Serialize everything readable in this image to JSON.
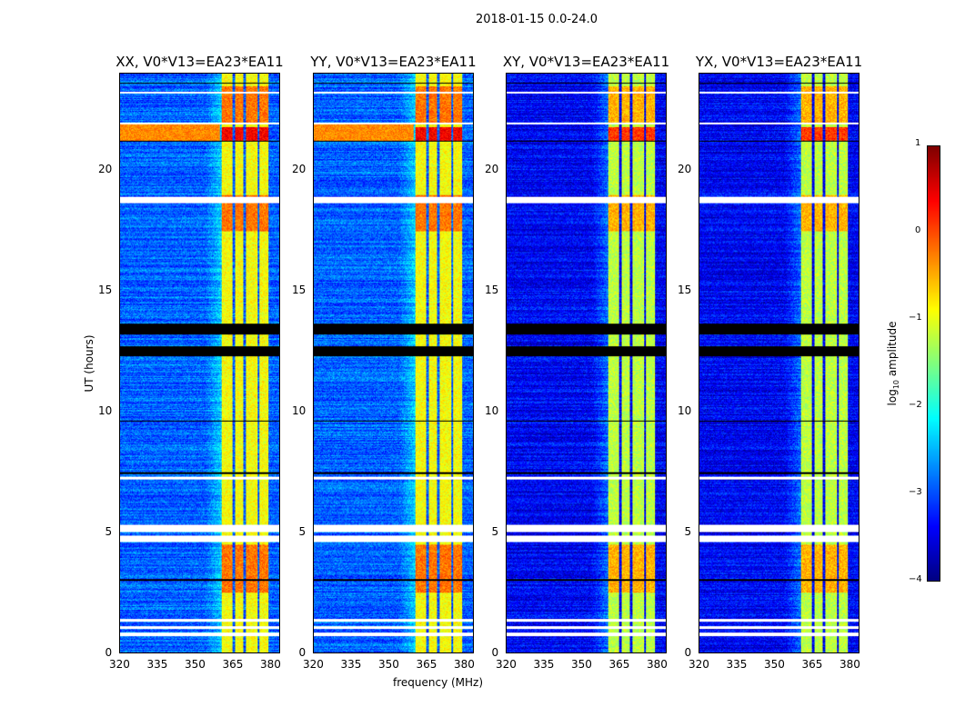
{
  "chart_data": {
    "type": "heatmap",
    "title": "2018-01-15 0.0-24.0",
    "xlabel": "frequency (MHz)",
    "ylabel": "UT (hours)",
    "xlim": [
      320,
      384
    ],
    "ylim": [
      0,
      24
    ],
    "xticks": [
      320,
      335,
      350,
      365,
      380
    ],
    "yticks": [
      0,
      5,
      10,
      15,
      20
    ],
    "panels": [
      {
        "title": "XX, V0*V13=EA23*EA11",
        "seed": 1,
        "bg": -2.9
      },
      {
        "title": "YY, V0*V13=EA23*EA11",
        "seed": 2,
        "bg": -2.9
      },
      {
        "title": "XY, V0*V13=EA23*EA11",
        "seed": 3,
        "bg": -3.4
      },
      {
        "title": "YX, V0*V13=EA23*EA11",
        "seed": 4,
        "bg": -3.4
      }
    ],
    "bright_bands_mhz": [
      [
        360.5,
        365
      ],
      [
        366,
        369.5
      ],
      [
        370.5,
        375
      ],
      [
        375.7,
        379.6
      ]
    ],
    "flagged_white_hours": [
      [
        18.65,
        18.9
      ],
      [
        5.0,
        5.3
      ],
      [
        4.6,
        4.85
      ],
      [
        1.0,
        1.1
      ],
      [
        1.3,
        1.4
      ],
      [
        0.7,
        0.85
      ],
      [
        21.9,
        22.0
      ],
      [
        7.2,
        7.3
      ],
      [
        23.2,
        23.25
      ]
    ],
    "flagged_black_hours": [
      [
        13.2,
        13.65
      ],
      [
        12.3,
        12.7
      ],
      [
        7.4,
        7.5
      ],
      [
        23.6,
        23.65
      ],
      [
        21.2,
        21.25
      ],
      [
        9.6,
        9.65
      ],
      [
        3.0,
        3.05
      ]
    ],
    "colorbar": {
      "label": "log10 amplitude",
      "label_base": "log",
      "label_sub": "10",
      "label_rest": " amplitude",
      "ticks": [
        1,
        0,
        -1,
        -2,
        -3,
        -4
      ],
      "tick_labels": [
        "1",
        "0",
        "−1",
        "−2",
        "−3",
        "−4"
      ],
      "range": [
        -4,
        1
      ],
      "colormap": "jet"
    }
  }
}
